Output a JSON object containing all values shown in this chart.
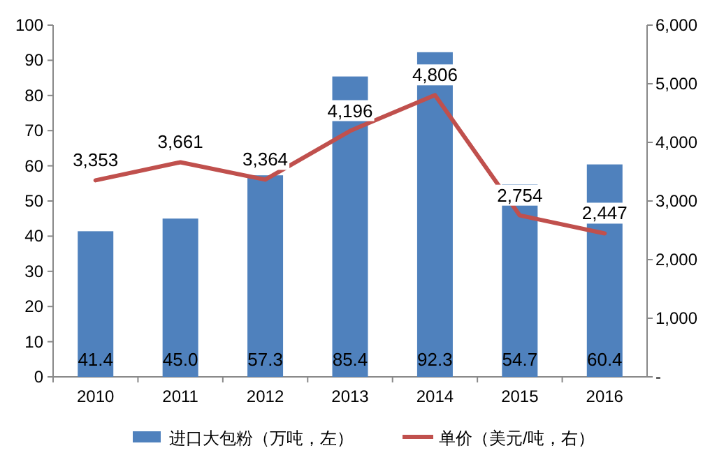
{
  "chart_data": {
    "type": "bar",
    "categories": [
      "2010",
      "2011",
      "2012",
      "2013",
      "2014",
      "2015",
      "2016"
    ],
    "series": [
      {
        "name": "进口大包粉（万吨，左）",
        "color": "#4f81bd",
        "values": [
          41.4,
          45.0,
          57.3,
          85.4,
          92.3,
          54.7,
          60.4
        ],
        "value_labels": [
          "41.4",
          "45.0",
          "57.3",
          "85.4",
          "92.3",
          "54.7",
          "60.4"
        ]
      },
      {
        "name": "单价（美元/吨，右）",
        "type": "line",
        "axis": "y2",
        "color": "#c0504d",
        "values": [
          3353,
          3661,
          3364,
          4196,
          4806,
          2754,
          2447
        ],
        "value_labels": [
          "3,353",
          "3,661",
          "3,364",
          "4,196",
          "4,806",
          "2,754",
          "2,447"
        ]
      }
    ],
    "ylim": [
      0,
      100
    ],
    "yticks": [
      0,
      10,
      20,
      30,
      40,
      50,
      60,
      70,
      80,
      90,
      100
    ],
    "y2lim": [
      0,
      6000
    ],
    "y2ticks": [
      {
        "value": 0,
        "label": "-"
      },
      {
        "value": 1000,
        "label": "1,000"
      },
      {
        "value": 2000,
        "label": "2,000"
      },
      {
        "value": 3000,
        "label": "3,000"
      },
      {
        "value": 4000,
        "label": "4,000"
      },
      {
        "value": 5000,
        "label": "5,000"
      },
      {
        "value": 6000,
        "label": "6,000"
      }
    ],
    "legend": "bottom",
    "grid": false,
    "marker": "none",
    "line_style": "solid"
  }
}
